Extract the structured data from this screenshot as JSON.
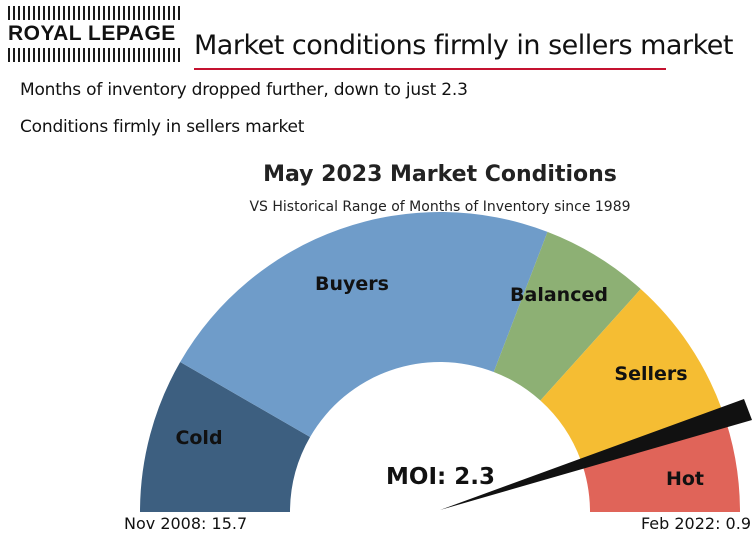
{
  "header": {
    "brand": "ROYAL LEPAGE",
    "headline": "Market conditions firmly in sellers market",
    "bullets": [
      "Months of inventory dropped further, down to just 2.3",
      "Conditions firmly in sellers market"
    ]
  },
  "chart_data": {
    "type": "gauge",
    "title": "May 2023 Market Conditions",
    "subtitle": "VS Historical Range of Months of Inventory since 1989",
    "segments": [
      {
        "label": "Cold",
        "color": "#3d5f80"
      },
      {
        "label": "Buyers",
        "color": "#6f9cc9"
      },
      {
        "label": "Balanced",
        "color": "#8db074"
      },
      {
        "label": "Sellers",
        "color": "#f5bd33"
      },
      {
        "label": "Hot",
        "color": "#e06459"
      }
    ],
    "needle": {
      "label": "MOI: 2.3",
      "value": 2.3
    },
    "left_end": {
      "label": "Nov 2008: 15.7",
      "value": 15.7
    },
    "right_end": {
      "label": "Feb 2022: 0.9",
      "value": 0.9
    }
  }
}
